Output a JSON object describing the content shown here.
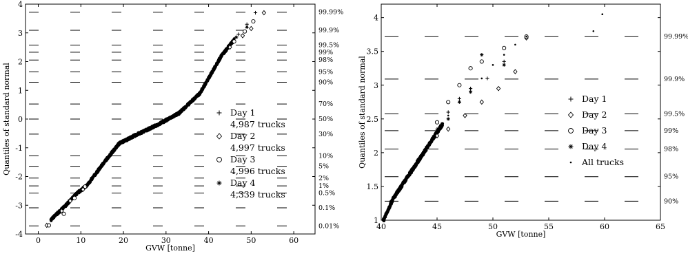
{
  "chart_data": [
    {
      "type": "scatter",
      "title": "",
      "xlabel": "GVW [tonne]",
      "ylabel": "Quantiles of standard normal",
      "xlim": [
        -3,
        65
      ],
      "ylim": [
        -4,
        4
      ],
      "x_ticks": [
        0,
        10,
        20,
        30,
        40,
        50,
        60
      ],
      "y_ticks": [
        -4,
        -3,
        -2,
        -1,
        0,
        1,
        2,
        3,
        4
      ],
      "probability_axis": {
        "side": "right",
        "labels": [
          {
            "label": "99.99%",
            "z": 3.719
          },
          {
            "label": "99.9%",
            "z": 3.09
          },
          {
            "label": "99.5%",
            "z": 2.576
          },
          {
            "label": "99%",
            "z": 2.326
          },
          {
            "label": "98%",
            "z": 2.054
          },
          {
            "label": "95%",
            "z": 1.645
          },
          {
            "label": "90%",
            "z": 1.282
          },
          {
            "label": "70%",
            "z": 0.524
          },
          {
            "label": "50%",
            "z": 0
          },
          {
            "label": "30%",
            "z": -0.524
          },
          {
            "label": "10%",
            "z": -1.282
          },
          {
            "label": "5%",
            "z": -1.645
          },
          {
            "label": "2%",
            "z": -2.054
          },
          {
            "label": "1%",
            "z": -2.326
          },
          {
            "label": "0.5%",
            "z": -2.576
          },
          {
            "label": "0.1%",
            "z": -3.09
          },
          {
            "label": "0.01%",
            "z": -3.719
          }
        ]
      },
      "legend": {
        "placement": "right-center",
        "entries": [
          {
            "marker": "+",
            "label": "Day 1",
            "count": "4,987 trucks"
          },
          {
            "marker": "◇",
            "label": "Day 2",
            "count": "4,997 trucks"
          },
          {
            "marker": "○",
            "label": "Day 3",
            "count": "4,996 trucks"
          },
          {
            "marker": "✱",
            "label": "Day 4",
            "count": "4,339 trucks"
          }
        ]
      },
      "series": [
        {
          "name": "Day 1",
          "marker": "plus",
          "points": [
            [
              3.5,
              -3.4
            ],
            [
              6,
              -3.05
            ],
            [
              8,
              -2.75
            ],
            [
              10,
              -2.45
            ],
            [
              14,
              -1.75
            ],
            [
              17,
              -1.05
            ],
            [
              20,
              -0.75
            ],
            [
              25,
              -0.4
            ],
            [
              30,
              -0.05
            ],
            [
              35,
              0.45
            ],
            [
              40,
              1.55
            ],
            [
              44,
              2.6
            ],
            [
              47,
              2.95
            ],
            [
              49,
              3.3
            ],
            [
              51,
              3.7
            ]
          ]
        },
        {
          "name": "Day 2",
          "marker": "diamond",
          "points": [
            [
              2,
              -3.7
            ],
            [
              5.5,
              -3.2
            ],
            [
              7.5,
              -2.85
            ],
            [
              10.5,
              -2.45
            ],
            [
              14.5,
              -1.75
            ],
            [
              17.5,
              -1.0
            ],
            [
              21,
              -0.7
            ],
            [
              26,
              -0.35
            ],
            [
              31,
              0.0
            ],
            [
              36,
              0.5
            ],
            [
              41,
              1.7
            ],
            [
              45,
              2.5
            ],
            [
              48,
              2.9
            ],
            [
              50,
              3.15
            ],
            [
              53,
              3.7
            ]
          ]
        },
        {
          "name": "Day 3",
          "marker": "circle",
          "points": [
            [
              2.5,
              -3.7
            ],
            [
              6,
              -3.3
            ],
            [
              8.5,
              -2.75
            ],
            [
              11,
              -2.35
            ],
            [
              15,
              -1.6
            ],
            [
              18,
              -0.95
            ],
            [
              22,
              -0.6
            ],
            [
              27,
              -0.3
            ],
            [
              32,
              0.1
            ],
            [
              37,
              0.7
            ],
            [
              42,
              1.95
            ],
            [
              46,
              2.7
            ],
            [
              48.5,
              3.05
            ],
            [
              50.5,
              3.4
            ]
          ]
        },
        {
          "name": "Day 4",
          "marker": "asterisk",
          "points": [
            [
              3,
              -3.5
            ],
            [
              6.5,
              -3.0
            ],
            [
              9,
              -2.6
            ],
            [
              11.5,
              -2.3
            ],
            [
              15.5,
              -1.5
            ],
            [
              19,
              -0.85
            ],
            [
              23,
              -0.55
            ],
            [
              28,
              -0.2
            ],
            [
              33,
              0.2
            ],
            [
              38,
              0.9
            ],
            [
              43,
              2.2
            ],
            [
              46.5,
              2.85
            ],
            [
              49,
              3.2
            ]
          ]
        }
      ]
    },
    {
      "type": "scatter",
      "title": "",
      "xlabel": "GVW [tonne]",
      "ylabel": "Quantiles of standard normal",
      "xlim": [
        40,
        65
      ],
      "ylim": [
        1,
        4.2
      ],
      "x_ticks": [
        40,
        45,
        50,
        55,
        60,
        65
      ],
      "y_ticks": [
        1,
        1.5,
        2,
        2.5,
        3,
        3.5,
        4
      ],
      "probability_axis": {
        "side": "right",
        "labels": [
          {
            "label": "99.99%",
            "z": 3.719
          },
          {
            "label": "99.9%",
            "z": 3.09
          },
          {
            "label": "99.5%",
            "z": 2.576
          },
          {
            "label": "99%",
            "z": 2.326
          },
          {
            "label": "98%",
            "z": 2.054
          },
          {
            "label": "95%",
            "z": 1.645
          },
          {
            "label": "90%",
            "z": 1.282
          }
        ]
      },
      "legend": {
        "placement": "right-center",
        "entries": [
          {
            "marker": "+",
            "label": "Day 1"
          },
          {
            "marker": "◇",
            "label": "Day 2"
          },
          {
            "marker": "○",
            "label": "Day 3"
          },
          {
            "marker": "✱",
            "label": "Day 4"
          },
          {
            "marker": "·",
            "label": "All trucks"
          }
        ]
      },
      "series": [
        {
          "name": "Day 1",
          "marker": "plus",
          "points": [
            [
              40.5,
              1.1
            ],
            [
              42,
              1.55
            ],
            [
              43.5,
              1.95
            ],
            [
              45,
              2.35
            ],
            [
              46,
              2.6
            ],
            [
              47,
              2.8
            ],
            [
              48,
              2.95
            ],
            [
              49.5,
              3.1
            ],
            [
              51,
              3.35
            ],
            [
              53,
              3.72
            ]
          ]
        },
        {
          "name": "Day 2",
          "marker": "diamond",
          "points": [
            [
              40.5,
              1.05
            ],
            [
              42,
              1.45
            ],
            [
              43.5,
              1.85
            ],
            [
              45,
              2.25
            ],
            [
              46,
              2.35
            ],
            [
              47.5,
              2.55
            ],
            [
              49,
              2.75
            ],
            [
              50.5,
              2.95
            ],
            [
              52,
              3.2
            ],
            [
              53,
              3.7
            ]
          ]
        },
        {
          "name": "Day 3",
          "marker": "circle",
          "points": [
            [
              40.5,
              1.12
            ],
            [
              42,
              1.6
            ],
            [
              43.5,
              2.0
            ],
            [
              45,
              2.45
            ],
            [
              46,
              2.75
            ],
            [
              47,
              3.0
            ],
            [
              48,
              3.25
            ],
            [
              49,
              3.35
            ],
            [
              51,
              3.55
            ],
            [
              53,
              3.72
            ]
          ]
        },
        {
          "name": "Day 4",
          "marker": "asterisk",
          "points": [
            [
              40.5,
              1.08
            ],
            [
              42,
              1.5
            ],
            [
              43.5,
              1.9
            ],
            [
              45,
              2.3
            ],
            [
              46,
              2.5
            ],
            [
              47,
              2.75
            ],
            [
              48,
              2.9
            ],
            [
              49,
              3.45
            ],
            [
              51,
              3.3
            ]
          ]
        },
        {
          "name": "All trucks",
          "marker": "dot",
          "points": [
            [
              40.2,
              1.0
            ],
            [
              41,
              1.3
            ],
            [
              42,
              1.55
            ],
            [
              43,
              1.8
            ],
            [
              44,
              2.05
            ],
            [
              45,
              2.3
            ],
            [
              46,
              2.55
            ],
            [
              47,
              2.75
            ],
            [
              48,
              2.95
            ],
            [
              49,
              3.1
            ],
            [
              50,
              3.3
            ],
            [
              51,
              3.45
            ],
            [
              52,
              3.6
            ],
            [
              53,
              3.72
            ],
            [
              59,
              3.8
            ],
            [
              59.8,
              4.05
            ]
          ]
        }
      ]
    }
  ]
}
